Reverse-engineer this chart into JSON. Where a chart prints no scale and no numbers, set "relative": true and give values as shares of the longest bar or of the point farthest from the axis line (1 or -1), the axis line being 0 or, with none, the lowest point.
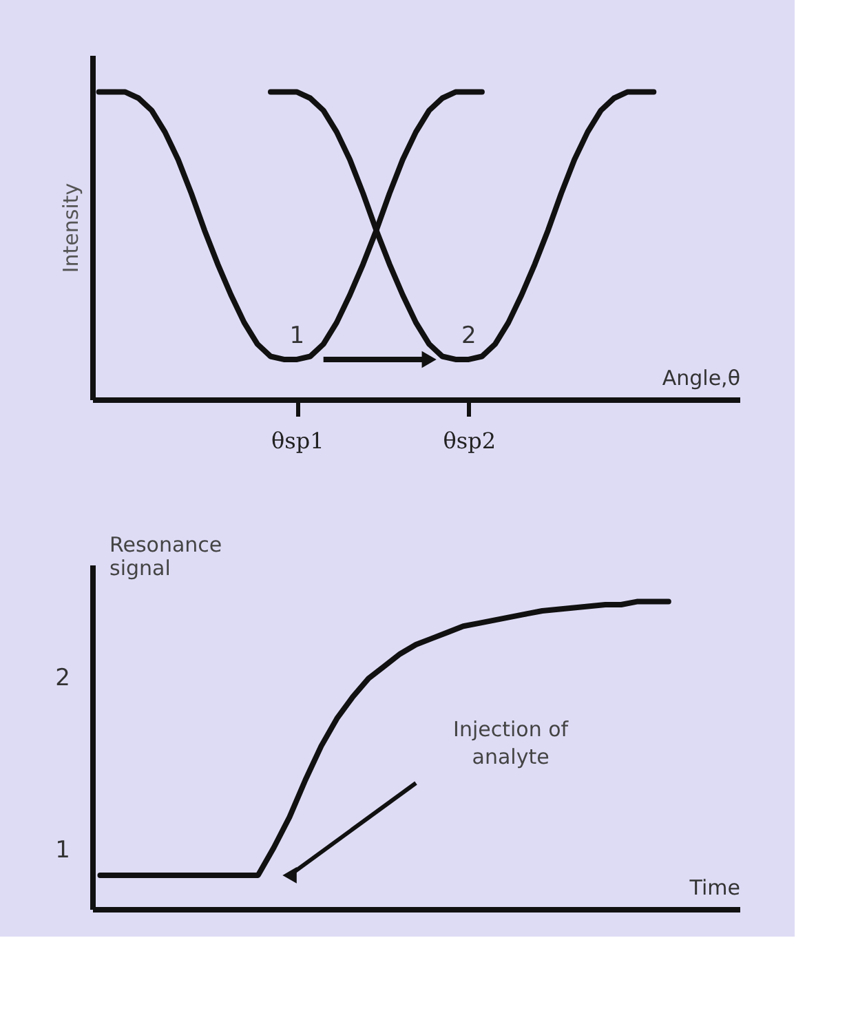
{
  "chart_data": [
    {
      "type": "line",
      "relative": true,
      "xlabel": "Angle,θ",
      "ylabel": "Intensity",
      "categories": [
        null,
        null,
        null,
        null,
        null,
        null,
        null,
        null,
        null,
        null,
        null,
        null,
        null,
        null,
        null,
        "θsp1",
        null,
        null,
        null,
        null,
        null,
        null,
        null,
        null,
        null,
        null,
        null,
        null,
        "θsp2",
        null,
        null,
        null,
        null,
        null,
        null,
        null,
        null,
        null,
        null,
        null,
        null,
        null,
        null,
        null,
        null,
        null,
        null,
        null,
        null
      ],
      "series": [
        {
          "color": "#111111",
          "values": [
            1,
            1,
            1,
            0.98,
            0.94,
            0.87,
            0.78,
            0.67,
            0.55,
            0.44,
            0.34,
            0.25,
            0.18,
            0.14,
            0.13,
            0.13,
            0.14,
            0.18,
            0.25,
            0.34,
            0.44,
            0.55,
            0.67,
            0.78,
            0.87,
            0.94,
            0.98,
            1,
            1,
            1,
            null,
            null,
            null,
            null,
            null,
            null,
            null,
            null,
            null,
            null,
            null,
            null,
            null,
            null,
            null,
            null,
            null,
            null,
            null
          ]
        },
        {
          "color": "#111111",
          "values": [
            null,
            null,
            null,
            null,
            null,
            null,
            null,
            null,
            null,
            null,
            null,
            null,
            null,
            1,
            1,
            1,
            0.98,
            0.94,
            0.87,
            0.78,
            0.67,
            0.55,
            0.44,
            0.34,
            0.25,
            0.18,
            0.14,
            0.13,
            0.13,
            0.14,
            0.18,
            0.25,
            0.34,
            0.44,
            0.55,
            0.67,
            0.78,
            0.87,
            0.94,
            0.98,
            1,
            1,
            1,
            null,
            null,
            null,
            null,
            null,
            null
          ]
        }
      ],
      "annotations": [
        "1",
        "2"
      ]
    },
    {
      "type": "line",
      "relative": true,
      "xlabel": "Time",
      "ylabel": "Resonance signal",
      "categories": [
        null,
        null,
        null,
        null,
        null,
        null,
        null,
        null,
        null,
        null,
        null,
        null,
        null,
        null,
        null,
        null,
        null,
        null,
        null,
        null,
        null,
        null,
        null,
        null,
        null,
        null,
        null,
        null,
        null,
        null,
        null,
        null,
        null,
        null,
        null,
        null,
        null,
        null,
        null,
        null,
        null
      ],
      "series": [
        {
          "color": "#111111",
          "values": [
            0.11,
            0.11,
            0.11,
            0.11,
            0.11,
            0.11,
            0.11,
            0.11,
            0.11,
            0.11,
            0.11,
            0.2,
            0.3,
            0.42,
            0.53,
            0.62,
            0.69,
            0.75,
            0.79,
            0.83,
            0.86,
            0.88,
            0.9,
            0.92,
            0.93,
            0.94,
            0.95,
            0.96,
            0.97,
            0.975,
            0.98,
            0.985,
            0.99,
            0.99,
            1,
            1,
            1,
            null,
            null,
            null,
            null
          ]
        }
      ],
      "annotations": [
        "2",
        "1",
        "Injection of analyte"
      ]
    }
  ]
}
